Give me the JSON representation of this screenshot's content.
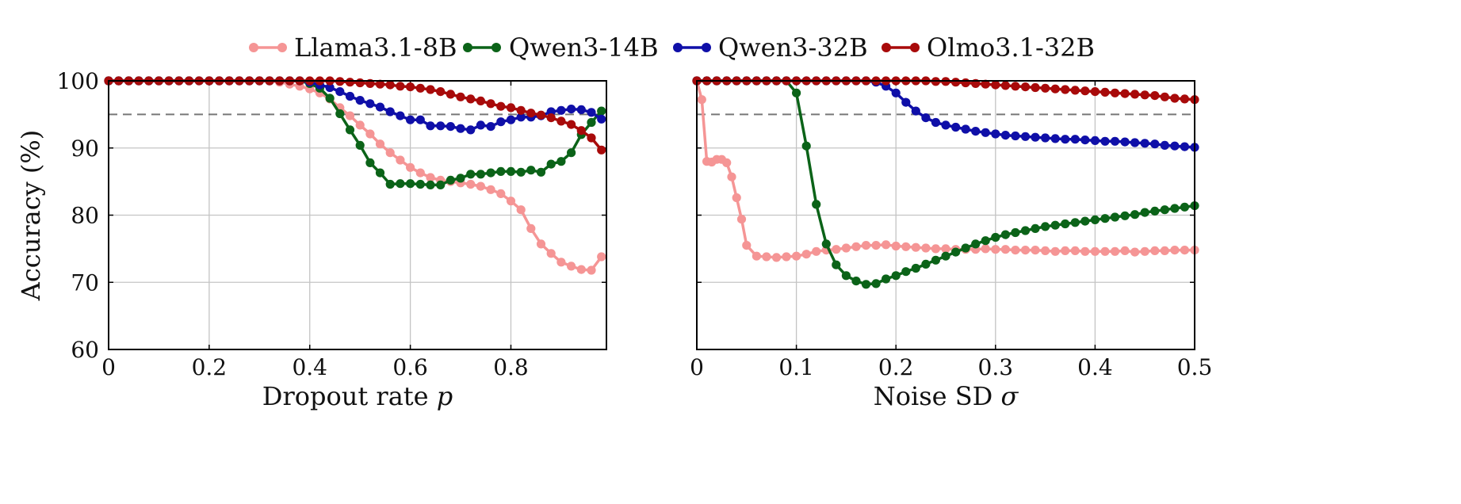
{
  "chart_data": [
    {
      "type": "line",
      "xlabel": "Dropout rate p",
      "ylabel": "Accuracy (%)",
      "xlim": [
        0,
        0.99
      ],
      "ylim": [
        60,
        100
      ],
      "xticks": [
        "0",
        "0.2",
        "0.4",
        "0.6",
        "0.8"
      ],
      "xtick_values": [
        0,
        0.2,
        0.4,
        0.6,
        0.8
      ],
      "yticks": [
        "60",
        "70",
        "80",
        "90",
        "100"
      ],
      "ytick_values": [
        60,
        70,
        80,
        90,
        100
      ],
      "reference_line": 95,
      "grid": true,
      "x": [
        0,
        0.02,
        0.04,
        0.06,
        0.08,
        0.1,
        0.12,
        0.14,
        0.16,
        0.18,
        0.2,
        0.22,
        0.24,
        0.26,
        0.28,
        0.3,
        0.32,
        0.34,
        0.36,
        0.38,
        0.4,
        0.42,
        0.44,
        0.46,
        0.48,
        0.5,
        0.52,
        0.54,
        0.56,
        0.58,
        0.6,
        0.62,
        0.64,
        0.66,
        0.68,
        0.7,
        0.72,
        0.74,
        0.76,
        0.78,
        0.8,
        0.82,
        0.84,
        0.86,
        0.88,
        0.9,
        0.92,
        0.94,
        0.96,
        0.98
      ],
      "series": [
        {
          "name": "Llama3.1-8B",
          "values": [
            100,
            100,
            100,
            100,
            100,
            100,
            100,
            100,
            100,
            100,
            100,
            100,
            100,
            100,
            100,
            100,
            100,
            99.8,
            99.5,
            99.2,
            98.8,
            98.2,
            97.3,
            96.0,
            94.8,
            93.4,
            92.1,
            90.6,
            89.3,
            88.2,
            87.1,
            86.3,
            85.6,
            85.2,
            85.0,
            84.8,
            84.6,
            84.3,
            83.8,
            83.2,
            82.1,
            80.8,
            78.0,
            75.7,
            74.3,
            73.0,
            72.4,
            71.9,
            71.8,
            73.8
          ]
        },
        {
          "name": "Qwen3-14B",
          "values": [
            100,
            100,
            100,
            100,
            100,
            100,
            100,
            100,
            100,
            100,
            100,
            100,
            100,
            100,
            100,
            100,
            100,
            100,
            100,
            100,
            99.6,
            98.9,
            97.4,
            95.1,
            92.7,
            90.4,
            87.8,
            86.3,
            84.6,
            84.7,
            84.7,
            84.6,
            84.5,
            84.5,
            85.2,
            85.5,
            86.1,
            86.1,
            86.3,
            86.5,
            86.5,
            86.4,
            86.7,
            86.4,
            87.6,
            88.0,
            89.3,
            92.0,
            93.8,
            95.5
          ]
        },
        {
          "name": "Qwen3-32B",
          "values": [
            100,
            100,
            100,
            100,
            100,
            100,
            100,
            100,
            100,
            100,
            100,
            100,
            100,
            100,
            100,
            100,
            100,
            100,
            100,
            100,
            99.8,
            99.4,
            99.0,
            98.4,
            97.7,
            97.1,
            96.6,
            96.1,
            95.4,
            94.8,
            94.2,
            94.2,
            93.3,
            93.3,
            93.2,
            92.9,
            92.7,
            93.4,
            93.2,
            93.9,
            94.2,
            94.6,
            94.6,
            94.8,
            95.4,
            95.6,
            95.8,
            95.7,
            95.3,
            94.3
          ]
        },
        {
          "name": "Olmo3.1-32B",
          "values": [
            100,
            100,
            100,
            100,
            100,
            100,
            100,
            100,
            100,
            100,
            100,
            100,
            100,
            100,
            100,
            100,
            100,
            100,
            100,
            100,
            100,
            100,
            100,
            99.9,
            99.8,
            99.7,
            99.6,
            99.5,
            99.4,
            99.2,
            99.1,
            98.9,
            98.7,
            98.4,
            98.0,
            97.6,
            97.3,
            97.0,
            96.6,
            96.2,
            96.0,
            95.6,
            95.2,
            94.9,
            94.5,
            94.0,
            93.5,
            92.6,
            91.5,
            89.7
          ]
        }
      ]
    },
    {
      "type": "line",
      "xlabel": "Noise SD σ",
      "ylabel": "",
      "xlim": [
        0,
        0.5
      ],
      "ylim": [
        60,
        100
      ],
      "xticks": [
        "0",
        "0.1",
        "0.2",
        "0.3",
        "0.4",
        "0.5"
      ],
      "xtick_values": [
        0,
        0.1,
        0.2,
        0.3,
        0.4,
        0.5
      ],
      "yticks": [],
      "ytick_values": [
        70,
        80,
        90
      ],
      "reference_line": 95,
      "grid": true,
      "series": [
        {
          "name": "Llama3.1-8B",
          "x": [
            0,
            0.005,
            0.01,
            0.015,
            0.02,
            0.025,
            0.03,
            0.035,
            0.04,
            0.045,
            0.05,
            0.06,
            0.07,
            0.08,
            0.09,
            0.1,
            0.11,
            0.12,
            0.13,
            0.14,
            0.15,
            0.16,
            0.17,
            0.18,
            0.19,
            0.2,
            0.21,
            0.22,
            0.23,
            0.24,
            0.25,
            0.26,
            0.27,
            0.28,
            0.29,
            0.3,
            0.31,
            0.32,
            0.33,
            0.34,
            0.35,
            0.36,
            0.37,
            0.38,
            0.39,
            0.4,
            0.41,
            0.42,
            0.43,
            0.44,
            0.45,
            0.46,
            0.47,
            0.48,
            0.49,
            0.5
          ],
          "values": [
            100,
            97.2,
            88.0,
            87.9,
            88.3,
            88.3,
            87.8,
            85.7,
            82.6,
            79.4,
            75.5,
            73.9,
            73.8,
            73.7,
            73.8,
            73.9,
            74.2,
            74.6,
            74.8,
            74.9,
            75.1,
            75.3,
            75.5,
            75.5,
            75.6,
            75.4,
            75.3,
            75.2,
            75.1,
            75.0,
            75.0,
            74.9,
            74.9,
            74.9,
            75.0,
            74.9,
            74.9,
            74.8,
            74.8,
            74.8,
            74.7,
            74.6,
            74.7,
            74.7,
            74.6,
            74.6,
            74.6,
            74.6,
            74.7,
            74.5,
            74.6,
            74.7,
            74.7,
            74.8,
            74.8,
            74.8
          ]
        },
        {
          "name": "Qwen3-14B",
          "x": [
            0,
            0.01,
            0.02,
            0.03,
            0.04,
            0.05,
            0.06,
            0.07,
            0.08,
            0.09,
            0.1,
            0.11,
            0.12,
            0.13,
            0.14,
            0.15,
            0.16,
            0.17,
            0.18,
            0.19,
            0.2,
            0.21,
            0.22,
            0.23,
            0.24,
            0.25,
            0.26,
            0.27,
            0.28,
            0.29,
            0.3,
            0.31,
            0.32,
            0.33,
            0.34,
            0.35,
            0.36,
            0.37,
            0.38,
            0.39,
            0.4,
            0.41,
            0.42,
            0.43,
            0.44,
            0.45,
            0.46,
            0.47,
            0.48,
            0.49,
            0.5
          ],
          "values": [
            100,
            100,
            100,
            100,
            100,
            100,
            100,
            100,
            100,
            100,
            98.2,
            90.3,
            81.6,
            75.7,
            72.6,
            71.0,
            70.2,
            69.7,
            69.8,
            70.5,
            71.0,
            71.6,
            72.1,
            72.7,
            73.3,
            73.9,
            74.5,
            75.1,
            75.7,
            76.2,
            76.7,
            77.1,
            77.4,
            77.7,
            78.0,
            78.3,
            78.5,
            78.7,
            78.9,
            79.1,
            79.3,
            79.5,
            79.7,
            79.9,
            80.1,
            80.4,
            80.6,
            80.8,
            81.0,
            81.2,
            81.4
          ]
        },
        {
          "name": "Qwen3-32B",
          "x": [
            0,
            0.01,
            0.02,
            0.03,
            0.04,
            0.05,
            0.06,
            0.07,
            0.08,
            0.09,
            0.1,
            0.11,
            0.12,
            0.13,
            0.14,
            0.15,
            0.16,
            0.17,
            0.18,
            0.19,
            0.2,
            0.21,
            0.22,
            0.23,
            0.24,
            0.25,
            0.26,
            0.27,
            0.28,
            0.29,
            0.3,
            0.31,
            0.32,
            0.33,
            0.34,
            0.35,
            0.36,
            0.37,
            0.38,
            0.39,
            0.4,
            0.41,
            0.42,
            0.43,
            0.44,
            0.45,
            0.46,
            0.47,
            0.48,
            0.49,
            0.5
          ],
          "values": [
            100,
            100,
            100,
            100,
            100,
            100,
            100,
            100,
            100,
            100,
            100,
            100,
            100,
            100,
            100,
            100,
            100,
            100,
            99.8,
            99.2,
            98.2,
            96.8,
            95.5,
            94.5,
            93.8,
            93.4,
            93.1,
            92.8,
            92.5,
            92.3,
            92.1,
            91.9,
            91.8,
            91.7,
            91.6,
            91.5,
            91.4,
            91.3,
            91.3,
            91.2,
            91.1,
            91.0,
            91.0,
            90.9,
            90.8,
            90.7,
            90.6,
            90.4,
            90.3,
            90.2,
            90.1
          ]
        },
        {
          "name": "Olmo3.1-32B",
          "x": [
            0,
            0.01,
            0.02,
            0.03,
            0.04,
            0.05,
            0.06,
            0.07,
            0.08,
            0.09,
            0.1,
            0.11,
            0.12,
            0.13,
            0.14,
            0.15,
            0.16,
            0.17,
            0.18,
            0.19,
            0.2,
            0.21,
            0.22,
            0.23,
            0.24,
            0.25,
            0.26,
            0.27,
            0.28,
            0.29,
            0.3,
            0.31,
            0.32,
            0.33,
            0.34,
            0.35,
            0.36,
            0.37,
            0.38,
            0.39,
            0.4,
            0.41,
            0.42,
            0.43,
            0.44,
            0.45,
            0.46,
            0.47,
            0.48,
            0.49,
            0.5
          ],
          "values": [
            100,
            100,
            100,
            100,
            100,
            100,
            100,
            100,
            100,
            100,
            100,
            100,
            100,
            100,
            100,
            100,
            100,
            100,
            100,
            100,
            100,
            100,
            100,
            100,
            99.9,
            99.9,
            99.8,
            99.7,
            99.6,
            99.5,
            99.4,
            99.3,
            99.2,
            99.1,
            99.0,
            98.9,
            98.8,
            98.7,
            98.6,
            98.5,
            98.4,
            98.3,
            98.2,
            98.1,
            98.0,
            97.9,
            97.8,
            97.6,
            97.4,
            97.3,
            97.2
          ]
        }
      ]
    }
  ],
  "legend": [
    {
      "label": "Llama3.1-8B",
      "color": "#f59595"
    },
    {
      "label": "Qwen3-14B",
      "color": "#0b6318"
    },
    {
      "label": "Qwen3-32B",
      "color": "#0f0fa8"
    },
    {
      "label": "Olmo3.1-32B",
      "color": "#a80a0a"
    }
  ],
  "legend_position": "top-center"
}
